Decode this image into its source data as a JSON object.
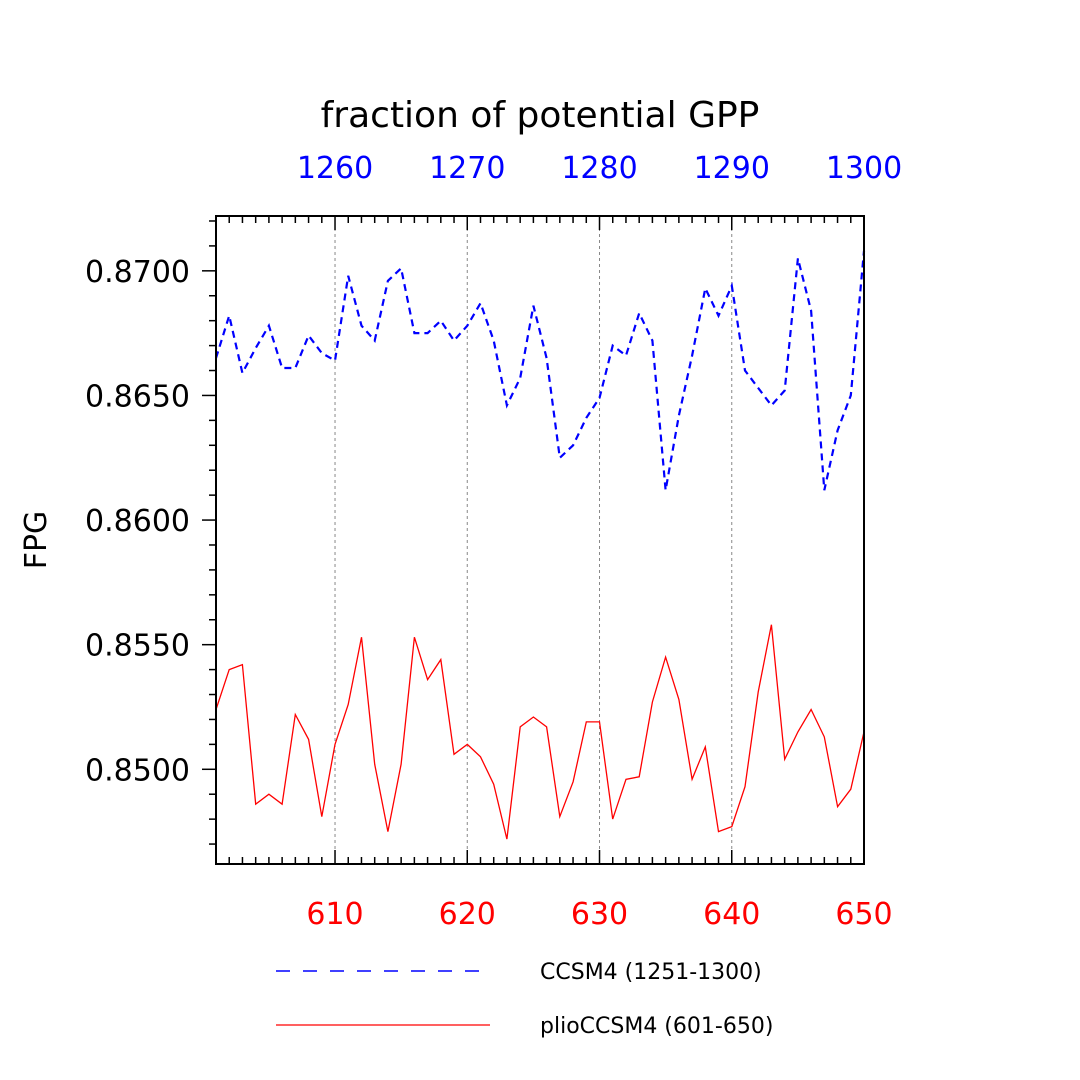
{
  "chart_data": {
    "type": "line",
    "title": "fraction of potential GPP",
    "ylabel": "FPG",
    "ylim": [
      0.8462,
      0.8722
    ],
    "y_ticks": [
      "0.8500",
      "0.8550",
      "0.8600",
      "0.8650",
      "0.8700"
    ],
    "bottom_axis": {
      "range": [
        601,
        650
      ],
      "ticks": [
        "610",
        "620",
        "630",
        "640",
        "650"
      ],
      "color": "#ff0000"
    },
    "top_axis": {
      "range": [
        1251,
        1300
      ],
      "ticks": [
        "1260",
        "1270",
        "1280",
        "1290",
        "1300"
      ],
      "color": "#0000ff"
    },
    "grid": "vertical dotted at bottom-axis major ticks",
    "legend": "bottom",
    "series": [
      {
        "name": "CCSM4 (1251-1300)",
        "color": "#0000ff",
        "style": "dashed",
        "axis": "top",
        "x": [
          1251,
          1252,
          1253,
          1254,
          1255,
          1256,
          1257,
          1258,
          1259,
          1260,
          1261,
          1262,
          1263,
          1264,
          1265,
          1266,
          1267,
          1268,
          1269,
          1270,
          1271,
          1272,
          1273,
          1274,
          1275,
          1276,
          1277,
          1278,
          1279,
          1280,
          1281,
          1282,
          1283,
          1284,
          1285,
          1286,
          1287,
          1288,
          1289,
          1290,
          1291,
          1292,
          1293,
          1294,
          1295,
          1296,
          1297,
          1298,
          1299,
          1300
        ],
        "values": [
          0.8665,
          0.8682,
          0.8659,
          0.8669,
          0.8678,
          0.8661,
          0.8661,
          0.8674,
          0.8667,
          0.8664,
          0.8698,
          0.8678,
          0.8672,
          0.8696,
          0.8701,
          0.8675,
          0.8675,
          0.868,
          0.8672,
          0.8678,
          0.8687,
          0.8672,
          0.8646,
          0.8657,
          0.8686,
          0.8665,
          0.8625,
          0.863,
          0.8641,
          0.8649,
          0.867,
          0.8666,
          0.8683,
          0.8672,
          0.8612,
          0.8642,
          0.8666,
          0.8693,
          0.8682,
          0.8694,
          0.866,
          0.8653,
          0.8646,
          0.8652,
          0.8705,
          0.8684,
          0.8612,
          0.8636,
          0.865,
          0.8708
        ]
      },
      {
        "name": "plioCCSM4 (601-650)",
        "color": "#ff0000",
        "style": "solid",
        "axis": "bottom",
        "x": [
          601,
          602,
          603,
          604,
          605,
          606,
          607,
          608,
          609,
          610,
          611,
          612,
          613,
          614,
          615,
          616,
          617,
          618,
          619,
          620,
          621,
          622,
          623,
          624,
          625,
          626,
          627,
          628,
          629,
          630,
          631,
          632,
          633,
          634,
          635,
          636,
          637,
          638,
          639,
          640,
          641,
          642,
          643,
          644,
          645,
          646,
          647,
          648,
          649,
          650
        ],
        "values": [
          0.8524,
          0.854,
          0.8542,
          0.8486,
          0.849,
          0.8486,
          0.8522,
          0.8512,
          0.8481,
          0.851,
          0.8526,
          0.8553,
          0.8502,
          0.8475,
          0.8502,
          0.8553,
          0.8536,
          0.8544,
          0.8506,
          0.851,
          0.8505,
          0.8494,
          0.8472,
          0.8517,
          0.8521,
          0.8517,
          0.8481,
          0.8495,
          0.8519,
          0.8519,
          0.848,
          0.8496,
          0.8497,
          0.8527,
          0.8545,
          0.8528,
          0.8496,
          0.8509,
          0.8475,
          0.8477,
          0.8493,
          0.8531,
          0.8558,
          0.8504,
          0.8515,
          0.8524,
          0.8513,
          0.8485,
          0.8492,
          0.8515
        ]
      }
    ]
  }
}
